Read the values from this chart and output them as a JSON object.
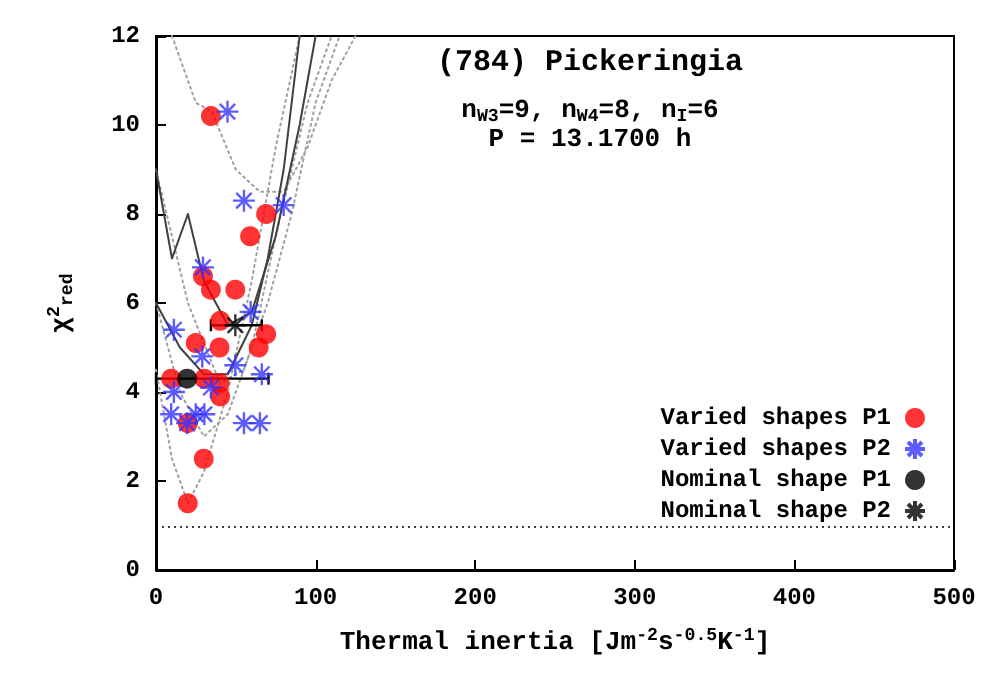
{
  "chart_data": {
    "type": "scatter",
    "title": "(784) Pickeringia",
    "annotations": [
      "n$_{W3}$=9, n$_{W4}$=8, n$_{I}$=6",
      "P = 13.1700 h"
    ],
    "xlabel": "Thermal inertia [Jm$^{-2}$s$^{-0.5}$K$^{-1}$]",
    "ylabel": "χ$^{2}$$_{red}$",
    "xlim": [
      0,
      500
    ],
    "xticks": [
      0,
      100,
      200,
      300,
      400,
      500
    ],
    "ylim": [
      0,
      12
    ],
    "yticks": [
      0,
      2,
      4,
      6,
      8,
      10,
      12
    ],
    "grid": false,
    "legend": "bottom right",
    "ref_lines": [
      {
        "axis": "y",
        "value": 1,
        "color": "#000000",
        "line_style": "dotted"
      }
    ],
    "series": [
      {
        "type": "line",
        "color": "#a0a0a0",
        "line_style": "dotted",
        "marker": "none",
        "x": [
          0,
          10,
          20,
          30,
          45,
          60,
          75,
          90
        ],
        "values": [
          4.5,
          2.5,
          1.5,
          2.2,
          4,
          6.5,
          9.5,
          12
        ]
      },
      {
        "type": "line",
        "color": "#a0a0a0",
        "line_style": "dotted",
        "marker": "none",
        "x": [
          0,
          15,
          30,
          45,
          60,
          75,
          95,
          110
        ],
        "values": [
          6,
          4,
          3,
          3.5,
          5,
          7.5,
          10.5,
          12
        ]
      },
      {
        "type": "line",
        "color": "#a0a0a0",
        "line_style": "dotted",
        "marker": "none",
        "x": [
          0,
          20,
          40,
          55,
          70,
          85,
          100,
          115
        ],
        "values": [
          9,
          6,
          4.2,
          4.5,
          6,
          8,
          10.5,
          12
        ]
      },
      {
        "type": "line",
        "color": "#a0a0a0",
        "line_style": "dotted",
        "marker": "none",
        "x": [
          10,
          25,
          35,
          50,
          65,
          80,
          95,
          110,
          125
        ],
        "values": [
          12,
          10.5,
          10.3,
          9,
          8.5,
          8.5,
          9.5,
          11,
          12
        ]
      },
      {
        "type": "line",
        "color": "#404040",
        "line_style": "solid",
        "marker": "none",
        "x": [
          0,
          10,
          20,
          30,
          45,
          60,
          75,
          90,
          100
        ],
        "values": [
          9,
          7,
          8,
          6.5,
          5.5,
          5.8,
          7.5,
          10,
          12
        ]
      },
      {
        "type": "line",
        "color": "#404040",
        "line_style": "solid",
        "marker": "none",
        "x": [
          0,
          15,
          30,
          45,
          60,
          70,
          80,
          90
        ],
        "values": [
          6,
          5,
          4.4,
          4.4,
          5.5,
          7,
          9,
          12
        ]
      },
      {
        "name": "Varied shapes P1",
        "color": "#ff0000",
        "marker": "circle",
        "x": [
          34.4,
          69,
          59,
          29.4,
          34.4,
          49.7,
          40.2,
          69,
          24.9,
          39.8,
          64.3,
          9.5,
          30.3,
          39.8,
          40.2,
          19.9,
          29.9,
          19.9
        ],
        "values": [
          10.2,
          8.0,
          7.5,
          6.6,
          6.3,
          6.3,
          5.6,
          5.3,
          5.1,
          5.0,
          5.0,
          4.3,
          4.3,
          4.2,
          3.9,
          3.3,
          2.5,
          1.5
        ]
      },
      {
        "name": "Varied shapes P2",
        "color": "#3333ff",
        "marker": "cross",
        "x": [
          44.8,
          55.1,
          80,
          29.4,
          11.2,
          59.3,
          29,
          49.7,
          66.3,
          11.2,
          34.4,
          24.9,
          9.5,
          30.3,
          19.5,
          55.1,
          65.1
        ],
        "values": [
          10.3,
          8.3,
          8.2,
          6.8,
          5.4,
          5.8,
          4.8,
          4.6,
          4.4,
          4.0,
          4.1,
          3.5,
          3.5,
          3.5,
          3.3,
          3.3,
          3.3
        ]
      },
      {
        "name": "Nominal shape P1",
        "color": "#000000",
        "marker": "circle",
        "x": [
          19.5
        ],
        "values": [
          4.3
        ],
        "xerrors": [
          [
            0,
            70.5
          ]
        ]
      },
      {
        "name": "Nominal shape P2",
        "color": "#000000",
        "marker": "cross",
        "x": [
          49.7
        ],
        "values": [
          5.5
        ],
        "xerrors": [
          [
            34.4,
            66.3
          ]
        ]
      }
    ]
  }
}
